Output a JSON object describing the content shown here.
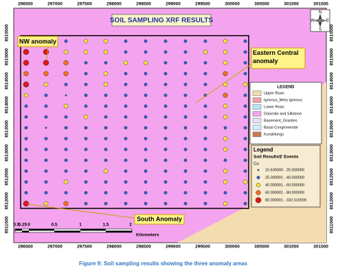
{
  "map": {
    "title": "SOIL SAMPLING XRF RESULTS",
    "x_labels": [
      296500,
      297000,
      297500,
      298000,
      298500,
      299000,
      299500,
      300000,
      300500,
      301000,
      301500
    ],
    "y_labels": [
      8515500,
      8515000,
      8514500,
      8514000,
      8513500,
      8513000,
      8512500,
      8512000,
      8511500
    ],
    "callouts": [
      "NW anomaly",
      "Eastern Central anomaly",
      "South Anomaly"
    ],
    "north": [
      "N",
      "S",
      "E",
      "W"
    ],
    "geology_legend": {
      "title": "LEGEND",
      "items": [
        {
          "label": "Upper Roan",
          "color": "#f3dcb0"
        },
        {
          "label": "Igneous_Meta Igneous",
          "color": "#f0a0a8"
        },
        {
          "label": "Lower Roan",
          "color": "#b8e4f4"
        },
        {
          "label": "Dolomite and Siltstone",
          "color": "#f4a4ee"
        },
        {
          "label": "Basement_Granites",
          "color": "#e2e2fa"
        },
        {
          "label": "Basal Conglomerate",
          "color": "#d6eefc"
        },
        {
          "label": "Kundelungu",
          "color": "#c87a52"
        }
      ]
    },
    "results_legend": {
      "title": "Legend",
      "subtitle": "Soil Results$' Events",
      "field": "Cu",
      "classes": [
        {
          "label": "15.630000 - 25.000000",
          "color": "#2a5fd0"
        },
        {
          "label": "25.000001 - 40.000000",
          "color": "#2a5fd0"
        },
        {
          "label": "40.000001 - 60.000000",
          "color": "#ffe23a"
        },
        {
          "label": "60.000001 - 80.000000",
          "color": "#f07020"
        },
        {
          "label": "80.000001 - 332.510000",
          "color": "#e01818"
        }
      ]
    },
    "scale_labels": [
      "0.5",
      "0.25",
      "0",
      "0.5",
      "1",
      "1.5",
      "2"
    ],
    "scale_unit": "Kilometers",
    "caption": "Figure 9: Soil sampling results showing the three anomaly areas"
  }
}
